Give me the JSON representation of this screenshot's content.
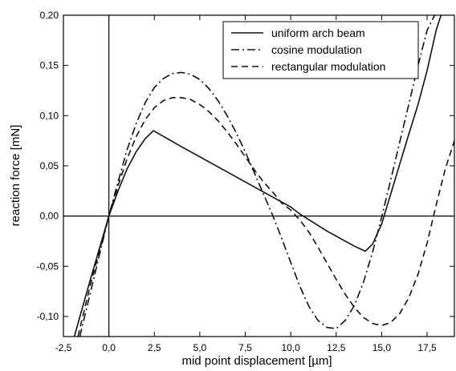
{
  "chart_data": {
    "type": "line",
    "title": "",
    "xlabel": "mid point displacement [µm]",
    "ylabel": "reaction force [mN]",
    "xlim": [
      -2.5,
      19.0
    ],
    "ylim": [
      -0.12,
      0.2
    ],
    "grid": false,
    "legend_position": "top-right",
    "x_ticks": [
      {
        "value": -2.5,
        "label": "-2,5"
      },
      {
        "value": 0.0,
        "label": "0,0"
      },
      {
        "value": 2.5,
        "label": "2,5"
      },
      {
        "value": 5.0,
        "label": "5,0"
      },
      {
        "value": 7.5,
        "label": "7,5"
      },
      {
        "value": 10.0,
        "label": "10,0"
      },
      {
        "value": 12.5,
        "label": "12,5"
      },
      {
        "value": 15.0,
        "label": "15,0"
      },
      {
        "value": 17.5,
        "label": "17,5"
      }
    ],
    "y_ticks": [
      {
        "value": -0.1,
        "label": "-0,10"
      },
      {
        "value": -0.05,
        "label": "-0,05"
      },
      {
        "value": 0.0,
        "label": "0,00"
      },
      {
        "value": 0.05,
        "label": "0,05"
      },
      {
        "value": 0.1,
        "label": "0,10"
      },
      {
        "value": 0.15,
        "label": "0,15"
      },
      {
        "value": 0.2,
        "label": "0,20"
      }
    ],
    "series": [
      {
        "name": "uniform arch beam",
        "dash": "solid",
        "x": [
          -1.9,
          -1.5,
          -1.0,
          -0.5,
          0.0,
          0.5,
          1.0,
          1.5,
          2.0,
          2.45,
          4.0,
          6.0,
          8.0,
          10.0,
          10.5,
          12.0,
          13.5,
          14.1,
          14.5,
          15.0,
          15.5,
          16.0,
          16.5,
          17.0,
          17.5,
          18.0,
          18.3
        ],
        "values": [
          -0.12,
          -0.094,
          -0.062,
          -0.031,
          0.0,
          0.025,
          0.047,
          0.064,
          0.077,
          0.085,
          0.069,
          0.049,
          0.029,
          0.009,
          0.002,
          -0.015,
          -0.03,
          -0.035,
          -0.028,
          -0.008,
          0.022,
          0.052,
          0.082,
          0.111,
          0.145,
          0.185,
          0.202
        ]
      },
      {
        "name": "cosine modulation",
        "dash": "dashdot",
        "x": [
          -1.6,
          -1.0,
          -0.5,
          0.0,
          0.5,
          1.0,
          1.5,
          2.0,
          2.5,
          3.0,
          3.5,
          4.0,
          4.5,
          5.0,
          5.5,
          6.0,
          6.5,
          7.0,
          7.5,
          8.0,
          8.5,
          9.0,
          9.5,
          10.0,
          10.5,
          11.0,
          11.5,
          12.0,
          12.5,
          13.0,
          13.5,
          14.0,
          14.5,
          15.0,
          15.5,
          16.0,
          16.5,
          17.0,
          17.5,
          18.0
        ],
        "values": [
          -0.12,
          -0.075,
          -0.037,
          0.0,
          0.034,
          0.066,
          0.092,
          0.113,
          0.128,
          0.137,
          0.142,
          0.143,
          0.141,
          0.136,
          0.127,
          0.115,
          0.1,
          0.083,
          0.064,
          0.043,
          0.022,
          0.001,
          -0.022,
          -0.046,
          -0.07,
          -0.09,
          -0.104,
          -0.111,
          -0.112,
          -0.104,
          -0.089,
          -0.066,
          -0.036,
          -0.001,
          0.036,
          0.074,
          0.112,
          0.15,
          0.185,
          0.203
        ]
      },
      {
        "name": "rectangular modulation",
        "dash": "dashed",
        "x": [
          -1.7,
          -1.0,
          -0.5,
          0.0,
          0.5,
          1.0,
          1.5,
          2.0,
          2.5,
          3.0,
          3.5,
          4.0,
          4.5,
          5.0,
          5.5,
          6.0,
          6.5,
          7.0,
          7.5,
          8.0,
          8.5,
          9.0,
          9.5,
          10.0,
          10.5,
          11.0,
          11.5,
          12.0,
          12.5,
          13.0,
          13.5,
          14.0,
          14.5,
          15.0,
          15.5,
          16.0,
          16.5,
          17.0,
          17.5,
          18.0,
          18.5,
          19.0
        ],
        "values": [
          -0.12,
          -0.067,
          -0.034,
          0.0,
          0.03,
          0.057,
          0.079,
          0.096,
          0.108,
          0.115,
          0.118,
          0.118,
          0.116,
          0.111,
          0.104,
          0.095,
          0.084,
          0.072,
          0.059,
          0.046,
          0.034,
          0.024,
          0.013,
          0.006,
          -0.004,
          -0.016,
          -0.031,
          -0.047,
          -0.063,
          -0.078,
          -0.091,
          -0.101,
          -0.107,
          -0.109,
          -0.106,
          -0.097,
          -0.081,
          -0.058,
          -0.027,
          0.011,
          0.047,
          0.075
        ]
      }
    ]
  }
}
